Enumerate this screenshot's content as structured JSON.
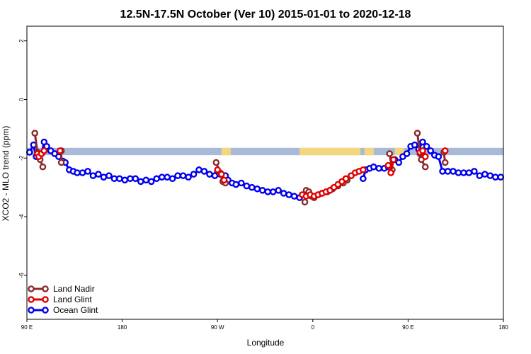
{
  "chart_data": {
    "type": "line",
    "title": "12.5N-17.5N October (Ver 10)   2015-01-01 to 2020-12-18",
    "xlabel": "Longitude",
    "ylabel": "XCO2 - MLO trend (ppm)",
    "xlim": [
      -90,
      270
    ],
    "ylim": [
      -7.5,
      2.5
    ],
    "xticks": [
      {
        "value": -90,
        "label": "90 E"
      },
      {
        "value": -18,
        "label": "180"
      },
      {
        "value": 54,
        "label": "90 W"
      },
      {
        "value": 126,
        "label": "0"
      },
      {
        "value": 198,
        "label": "90 E"
      },
      {
        "value": 270,
        "label": "180"
      }
    ],
    "yticks": [
      {
        "value": 2,
        "label": "2"
      },
      {
        "value": 0,
        "label": "0"
      },
      {
        "value": -2,
        "label": "-2"
      },
      {
        "value": -4,
        "label": "-4"
      },
      {
        "value": -6,
        "label": "-6"
      }
    ],
    "land_band": {
      "y_bottom": -1.9,
      "y_top": -1.65,
      "ocean_color": "#a8bad8",
      "land_color": "#f3d77a",
      "land_segments": [
        {
          "x": [
            -90,
            57,
            62,
            64
          ],
          "top": [
            -1.65,
            -1.65,
            -1.65,
            -1.65
          ],
          "bottom": [
            -1.65,
            -1.65,
            -1.75,
            -1.9
          ],
          "note": "x range only"
        }
      ]
    },
    "land_ranges": [
      [
        57,
        64
      ],
      [
        116,
        162
      ],
      [
        165,
        172
      ],
      [
        188,
        195
      ]
    ],
    "series": [
      {
        "name": "Land Nadir",
        "color": "#8b2a2a",
        "x": [
          -84,
          -82,
          -80,
          -78
        ],
        "y": [
          -1.15,
          -1.8,
          -2.05,
          -2.3
        ]
      },
      {
        "name": "Land Nadir",
        "color": "#8b2a2a",
        "x": [
          -64,
          -64
        ],
        "y": [
          -1.75,
          -2.15
        ]
      },
      {
        "name": "Land Nadir",
        "color": "#8b2a2a",
        "x": [
          53,
          56,
          58,
          60
        ],
        "y": [
          -2.15,
          -2.5,
          -2.8,
          -2.85
        ]
      },
      {
        "name": "Land Nadir",
        "color": "#8b2a2a",
        "x": [
          120,
          121,
          123,
          125,
          127,
          130,
          133,
          137,
          141,
          145,
          149,
          152,
          155
        ],
        "y": [
          -3.5,
          -3.1,
          -3.15,
          -3.3,
          -3.35,
          -3.25,
          -3.2,
          -3.15,
          -3.05,
          -2.95,
          -2.85,
          -2.75,
          -2.6
        ]
      },
      {
        "name": "Land Nadir",
        "color": "#8b2a2a",
        "x": [
          184,
          186
        ],
        "y": [
          -1.85,
          -2.4
        ]
      },
      {
        "name": "Land Nadir",
        "color": "#8b2a2a",
        "x": [
          205,
          207,
          208,
          211
        ],
        "y": [
          -1.15,
          -1.85,
          -2.05,
          -2.3
        ]
      },
      {
        "name": "Land Nadir",
        "color": "#8b2a2a",
        "x": [
          225,
          226
        ],
        "y": [
          -1.8,
          -2.15
        ]
      },
      {
        "name": "Land Glint",
        "color": "#e00000",
        "x": [
          -82,
          -81,
          -79,
          -77
        ],
        "y": [
          -1.85,
          -1.95,
          -1.85,
          -1.75
        ]
      },
      {
        "name": "Land Glint",
        "color": "#e00000",
        "x": [
          -65
        ],
        "y": [
          -1.75
        ]
      },
      {
        "name": "Land Glint",
        "color": "#e00000",
        "x": [
          54,
          57,
          59
        ],
        "y": [
          -2.4,
          -2.55,
          -2.75
        ]
      },
      {
        "name": "Land Glint",
        "color": "#e00000",
        "x": [
          118,
          121,
          124,
          127,
          130,
          133,
          136,
          139,
          142,
          145,
          148,
          151,
          155,
          158,
          161,
          164
        ],
        "y": [
          -3.25,
          -3.3,
          -3.25,
          -3.3,
          -3.25,
          -3.2,
          -3.15,
          -3.1,
          -3.0,
          -2.9,
          -2.8,
          -2.7,
          -2.6,
          -2.5,
          -2.45,
          -2.4
        ]
      },
      {
        "name": "Land Glint",
        "color": "#e00000",
        "x": [
          183,
          185,
          187
        ],
        "y": [
          -2.25,
          -2.5,
          -2.05
        ]
      },
      {
        "name": "Land Glint",
        "color": "#e00000",
        "x": [
          207,
          209,
          211
        ],
        "y": [
          -1.8,
          -1.75,
          -1.95
        ]
      },
      {
        "name": "Land Glint",
        "color": "#e00000",
        "x": [
          226
        ],
        "y": [
          -1.75
        ]
      },
      {
        "name": "Ocean Glint",
        "color": "#0000ee",
        "x": [
          -88,
          -85,
          -83,
          -81,
          -79,
          -77,
          -75,
          -72,
          -69,
          -66,
          -63,
          -61,
          -58,
          -55,
          -52,
          -48,
          -44,
          -40,
          -36,
          -32,
          -28,
          -24,
          -20,
          -16,
          -12,
          -8,
          -4,
          0,
          4,
          8,
          12,
          16,
          20,
          24,
          28,
          32,
          36,
          40,
          44,
          48,
          52,
          54,
          56,
          58,
          60,
          62,
          65,
          68,
          72,
          76,
          80,
          84,
          88,
          92,
          96,
          100,
          104,
          108,
          112,
          116
        ],
        "y": [
          -1.8,
          -1.55,
          -1.95,
          -1.9,
          -1.85,
          -1.45,
          -1.6,
          -1.75,
          -1.85,
          -1.95,
          -2.1,
          -2.15,
          -2.4,
          -2.45,
          -2.5,
          -2.5,
          -2.45,
          -2.6,
          -2.55,
          -2.65,
          -2.6,
          -2.7,
          -2.7,
          -2.75,
          -2.7,
          -2.7,
          -2.8,
          -2.75,
          -2.8,
          -2.7,
          -2.65,
          -2.65,
          -2.7,
          -2.6,
          -2.6,
          -2.65,
          -2.55,
          -2.4,
          -2.45,
          -2.55,
          -2.6,
          -2.45,
          -2.55,
          -2.6,
          -2.6,
          -2.75,
          -2.85,
          -2.9,
          -2.85,
          -2.95,
          -3.0,
          -3.05,
          -3.1,
          -3.15,
          -3.15,
          -3.1,
          -3.2,
          -3.25,
          -3.3,
          -3.35
        ]
      },
      {
        "name": "Ocean Glint",
        "color": "#0000ee",
        "x": [
          164,
          166,
          169,
          172,
          176,
          180,
          183,
          188,
          191,
          194,
          197,
          200,
          203,
          206,
          209,
          212,
          215,
          218,
          221,
          224,
          228,
          232,
          236,
          240,
          244,
          248,
          252,
          256,
          260,
          264,
          268
        ],
        "y": [
          -2.7,
          -2.4,
          -2.35,
          -2.3,
          -2.35,
          -2.35,
          -2.3,
          -2.05,
          -2.15,
          -1.95,
          -1.85,
          -1.6,
          -1.55,
          -1.7,
          -1.45,
          -1.6,
          -1.75,
          -1.9,
          -1.95,
          -2.45,
          -2.45,
          -2.45,
          -2.5,
          -2.5,
          -2.5,
          -2.45,
          -2.6,
          -2.55,
          -2.6,
          -2.65,
          -2.65
        ]
      }
    ],
    "legend": {
      "position": "bottom-left",
      "entries": [
        {
          "label": "Land Nadir",
          "color": "#8b2a2a"
        },
        {
          "label": "Land Glint",
          "color": "#e00000"
        },
        {
          "label": "Ocean Glint",
          "color": "#0000ee"
        }
      ]
    }
  }
}
